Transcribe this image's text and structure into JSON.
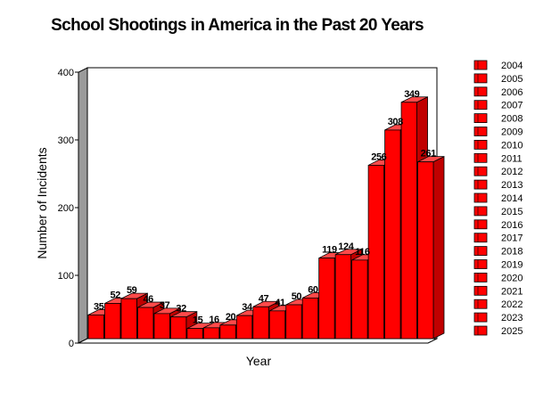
{
  "chart_data": {
    "type": "bar",
    "title": "School Shootings in America in the Past 20 Years",
    "xlabel": "Year",
    "ylabel": "Number of Incidents",
    "categories": [
      "2004",
      "2005",
      "2006",
      "2007",
      "2008",
      "2009",
      "2010",
      "2011",
      "2012",
      "2013",
      "2014",
      "2015",
      "2016",
      "2017",
      "2018",
      "2019",
      "2020",
      "2021",
      "2022",
      "2023",
      "2025"
    ],
    "values": [
      35,
      52,
      59,
      46,
      37,
      32,
      15,
      16,
      20,
      34,
      47,
      41,
      50,
      60,
      119,
      124,
      116,
      256,
      308,
      349,
      261
    ],
    "data_labels": [
      "35",
      "52",
      "59",
      "46",
      "37",
      "32",
      "15",
      "16",
      "20",
      "34",
      "47",
      "41",
      "50",
      "60",
      "119",
      "124",
      "116",
      "256",
      "308",
      "349",
      "261"
    ],
    "yticks": [
      0,
      100,
      200,
      300,
      400
    ],
    "ylim": [
      0,
      400
    ],
    "grid": false,
    "legend_position": "right",
    "bar_color": "#ff0000",
    "bar_side_color": "#c00000",
    "bar_top_color": "#ff4a4a",
    "wall_color": "#9a9a9a"
  }
}
